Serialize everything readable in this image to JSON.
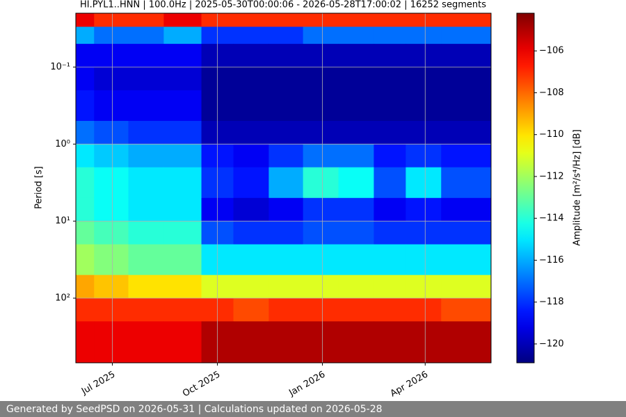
{
  "chart_data": {
    "type": "heatmap",
    "title": "HI.PYL1..HNN | 100.0Hz | 2025-05-30T00:00:06 - 2026-05-28T17:00:02 | 16252 segments",
    "ylabel": "Period [s]",
    "colorbar_label": "Amplitude [m²/s⁴/Hz] [dB]",
    "colormap": "jet",
    "y_log": true,
    "y_inverted": true,
    "grid": true,
    "xlim": [
      "2025-05-30T00:00:06",
      "2026-05-28T17:00:02"
    ],
    "xticks": [
      {
        "value": "2025-07-01T00:00:00",
        "label": "Jul 2025"
      },
      {
        "value": "2025-10-01T00:00:00",
        "label": "Oct 2025"
      },
      {
        "value": "2026-01-01T00:00:00",
        "label": "Jan 2026"
      },
      {
        "value": "2026-04-01T00:00:00",
        "label": "Apr 2026"
      }
    ],
    "ylim": [
      0.02,
      690
    ],
    "yticks": [
      {
        "value": 0.1,
        "label": "10⁻¹"
      },
      {
        "value": 1,
        "label": "10⁰"
      },
      {
        "value": 10,
        "label": "10¹"
      },
      {
        "value": 100,
        "label": "10²"
      }
    ],
    "clim": [
      -120.9,
      -104.2
    ],
    "cticks": [
      {
        "value": -106,
        "label": "−106"
      },
      {
        "value": -108,
        "label": "−108"
      },
      {
        "value": -110,
        "label": "−110"
      },
      {
        "value": -112,
        "label": "−112"
      },
      {
        "value": -114,
        "label": "−114"
      },
      {
        "value": -116,
        "label": "−116"
      },
      {
        "value": -118,
        "label": "−118"
      },
      {
        "value": -120,
        "label": "−120"
      }
    ],
    "time_bins": [
      "2025-05-30T00:00:06",
      "2025-06-15T00:00:00",
      "2025-07-15T00:00:00",
      "2025-08-15T00:00:00",
      "2025-09-17T00:00:00",
      "2025-10-15T00:00:00",
      "2025-11-15T00:00:00",
      "2025-12-15T00:00:00",
      "2026-01-15T00:00:00",
      "2026-02-15T00:00:00",
      "2026-03-15T00:00:00",
      "2026-04-15T00:00:00",
      "2026-05-28T17:00:02"
    ],
    "period_bins": [
      0.02,
      0.03,
      0.05,
      0.1,
      0.2,
      0.5,
      1,
      2,
      5,
      10,
      20,
      50,
      100,
      200,
      690
    ],
    "values": [
      [
        -106,
        -107,
        -107,
        -106,
        -107,
        -107,
        -107,
        -107,
        -107,
        -107,
        -107,
        -107
      ],
      [
        -116,
        -117,
        -117,
        -116,
        -118,
        -118,
        -118,
        -117,
        -117,
        -117,
        -117,
        -117
      ],
      [
        -119,
        -119,
        -119,
        -119,
        -120,
        -120,
        -120,
        -120,
        -120,
        -120,
        -120,
        -120
      ],
      [
        -119,
        -119.5,
        -119.5,
        -119.5,
        -120.5,
        -120.5,
        -120.5,
        -120.5,
        -120.5,
        -120.5,
        -120.5,
        -120.5
      ],
      [
        -118.5,
        -119,
        -119,
        -119,
        -120.5,
        -120.5,
        -120.5,
        -120.5,
        -120.5,
        -120.5,
        -120.5,
        -120.5
      ],
      [
        -117,
        -117.5,
        -118,
        -118,
        -120,
        -120,
        -120,
        -120,
        -120,
        -120,
        -120,
        -120
      ],
      [
        -115,
        -115.5,
        -116,
        -116,
        -118.5,
        -119,
        -118,
        -117,
        -117,
        -118.5,
        -118,
        -118.5
      ],
      [
        -114,
        -114.5,
        -115,
        -115,
        -118,
        -118.5,
        -116,
        -114,
        -114.5,
        -117.5,
        -115,
        -117.5
      ],
      [
        -114,
        -114.5,
        -115,
        -115,
        -119,
        -119.5,
        -119,
        -118,
        -118,
        -119,
        -118.5,
        -119
      ],
      [
        -113,
        -113.5,
        -114,
        -114,
        -117.5,
        -118,
        -118,
        -117.5,
        -117.5,
        -118,
        -118,
        -118
      ],
      [
        -112,
        -112.5,
        -113,
        -113,
        -115,
        -115,
        -115,
        -115,
        -115,
        -115,
        -115,
        -115
      ],
      [
        -109,
        -109.5,
        -110,
        -110,
        -111,
        -111,
        -111,
        -111,
        -111,
        -111,
        -111,
        -111
      ],
      [
        -107,
        -107,
        -107,
        -107,
        -107,
        -107.5,
        -107,
        -107,
        -107,
        -107,
        -107,
        -107.5
      ],
      [
        -106,
        -106,
        -106,
        -106,
        -105,
        -105,
        -105,
        -105,
        -105,
        -105,
        -105,
        -105
      ]
    ]
  },
  "footer": "Generated by SeedPSD on 2026-05-31 | Calculations updated on 2026-05-28"
}
